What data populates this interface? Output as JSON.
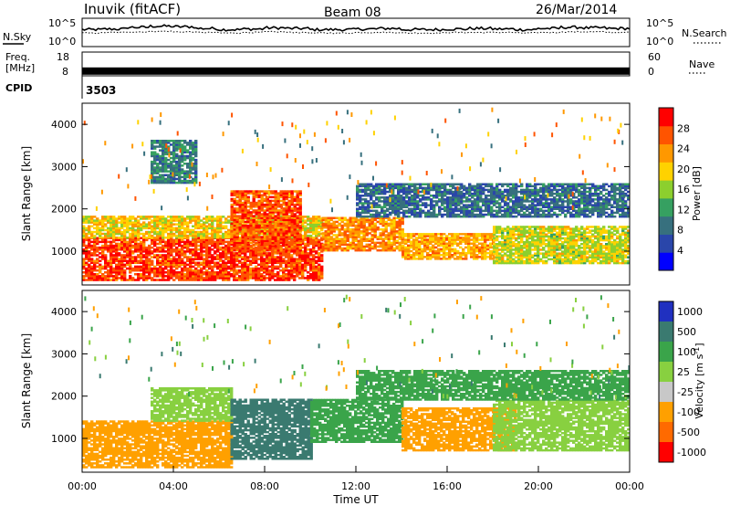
{
  "header": {
    "station": "Inuvik (fitACF)",
    "beam": "Beam 08",
    "date": "26/Mar/2014"
  },
  "chart_data": [
    {
      "type": "line",
      "panel": "noise",
      "left_label": "N.Sky",
      "right_label": "N.Search",
      "left_ticks": [
        "10^5",
        "10^0"
      ],
      "right_ticks": [
        "10^5",
        "10^0"
      ],
      "series": [
        {
          "name": "N.Sky",
          "style": "solid"
        },
        {
          "name": "N.Search",
          "style": "dotted"
        }
      ],
      "y_log_range": [
        0,
        5
      ],
      "x_range": [
        0,
        24
      ],
      "values_n_sky": [
        3.0,
        3.1,
        3.4,
        3.6,
        3.5,
        3.2,
        3.0,
        3.1,
        3.3,
        3.2,
        3.0,
        3.0,
        3.1,
        3.2,
        3.0,
        3.0,
        3.1,
        3.2,
        3.1,
        3.0,
        3.2,
        3.4,
        3.3,
        3.2
      ],
      "values_n_search": [
        2.4,
        2.5,
        2.6,
        2.7,
        2.6,
        2.5,
        2.4,
        2.5,
        2.6,
        2.5,
        2.4,
        2.4,
        2.5,
        2.5,
        2.4,
        2.4,
        2.5,
        2.5,
        2.5,
        2.4,
        2.5,
        2.6,
        2.6,
        2.5
      ]
    },
    {
      "type": "line",
      "panel": "frequency",
      "left_label_1": "Freq.",
      "left_label_2": "[MHz]",
      "right_label": "Nave",
      "left_ticks": [
        "18",
        "8"
      ],
      "right_ticks": [
        "60",
        "0"
      ],
      "y_range": [
        8,
        18
      ],
      "x_range": [
        0,
        24
      ],
      "freq_mhz": 10.0,
      "nave": 18
    },
    {
      "type": "table",
      "panel": "cpid",
      "label": "CPID",
      "value": "3503"
    },
    {
      "type": "heatmap",
      "panel": "power",
      "ylabel": "Slant Range [km]",
      "colorbar_label": "Power [dB]",
      "colorbar_ticks": [
        "28",
        "24",
        "20",
        "16",
        "12",
        "8",
        "4"
      ],
      "colorbar_range": [
        0,
        32
      ],
      "colors": [
        "#0000ff",
        "#2a46aa",
        "#37707e",
        "#36a061",
        "#8ccf2e",
        "#ffd200",
        "#ff9800",
        "#ff5400",
        "#ff0000"
      ],
      "y_range": [
        200,
        4500
      ],
      "y_ticks": [
        1000,
        2000,
        3000,
        4000
      ],
      "x_range": [
        0,
        24
      ],
      "bands": [
        {
          "t0": 0,
          "t1": 10.5,
          "r0": 300,
          "r1": 1300,
          "value": 28
        },
        {
          "t0": 0,
          "t1": 10.5,
          "r0": 1300,
          "r1": 1800,
          "value": 20
        },
        {
          "t0": 6.5,
          "t1": 9.5,
          "r0": 1000,
          "r1": 2400,
          "value": 27
        },
        {
          "t0": 10.5,
          "t1": 14,
          "r0": 1000,
          "r1": 1800,
          "value": 24
        },
        {
          "t0": 14,
          "t1": 18,
          "r0": 800,
          "r1": 1400,
          "value": 22
        },
        {
          "t0": 18,
          "t1": 24,
          "r0": 700,
          "r1": 1600,
          "value": 18
        },
        {
          "t0": 12,
          "t1": 24,
          "r0": 1800,
          "r1": 2600,
          "value": 8
        },
        {
          "t0": 3,
          "t1": 5,
          "r0": 2600,
          "r1": 3600,
          "value": 10
        }
      ]
    },
    {
      "type": "heatmap",
      "panel": "velocity",
      "ylabel": "Slant Range [km]",
      "colorbar_label": "Velocity",
      "colorbar_unit": "[m s",
      "colorbar_unit_sup": "-1",
      "colorbar_unit_end": "]",
      "colorbar_ticks": [
        "1000",
        "500",
        "100",
        "25",
        "-25",
        "-100",
        "-500",
        "-1000"
      ],
      "colors": [
        "#2030c0",
        "#3a7a70",
        "#3aa44a",
        "#88d040",
        "#c8c8c8",
        "#ffa000",
        "#ff6a00",
        "#ff0000"
      ],
      "y_range": [
        200,
        4500
      ],
      "y_ticks": [
        1000,
        2000,
        3000,
        4000
      ],
      "x_range": [
        0,
        24
      ],
      "xlabel": "Time UT",
      "x_ticks": [
        "00:00",
        "04:00",
        "08:00",
        "12:00",
        "16:00",
        "20:00",
        "00:00"
      ],
      "bands": [
        {
          "t0": 0,
          "t1": 6.5,
          "r0": 300,
          "r1": 1400,
          "value": -100
        },
        {
          "t0": 3,
          "t1": 6.5,
          "r0": 1400,
          "r1": 2200,
          "value": 25
        },
        {
          "t0": 6.5,
          "t1": 10,
          "r0": 500,
          "r1": 1900,
          "value": 500
        },
        {
          "t0": 10,
          "t1": 14,
          "r0": 900,
          "r1": 1900,
          "value": 100
        },
        {
          "t0": 14,
          "t1": 19,
          "r0": 700,
          "r1": 1700,
          "value": -100
        },
        {
          "t0": 18,
          "t1": 24,
          "r0": 700,
          "r1": 1900,
          "value": 25
        },
        {
          "t0": 12,
          "t1": 24,
          "r0": 1900,
          "r1": 2600,
          "value": 100
        }
      ]
    }
  ]
}
